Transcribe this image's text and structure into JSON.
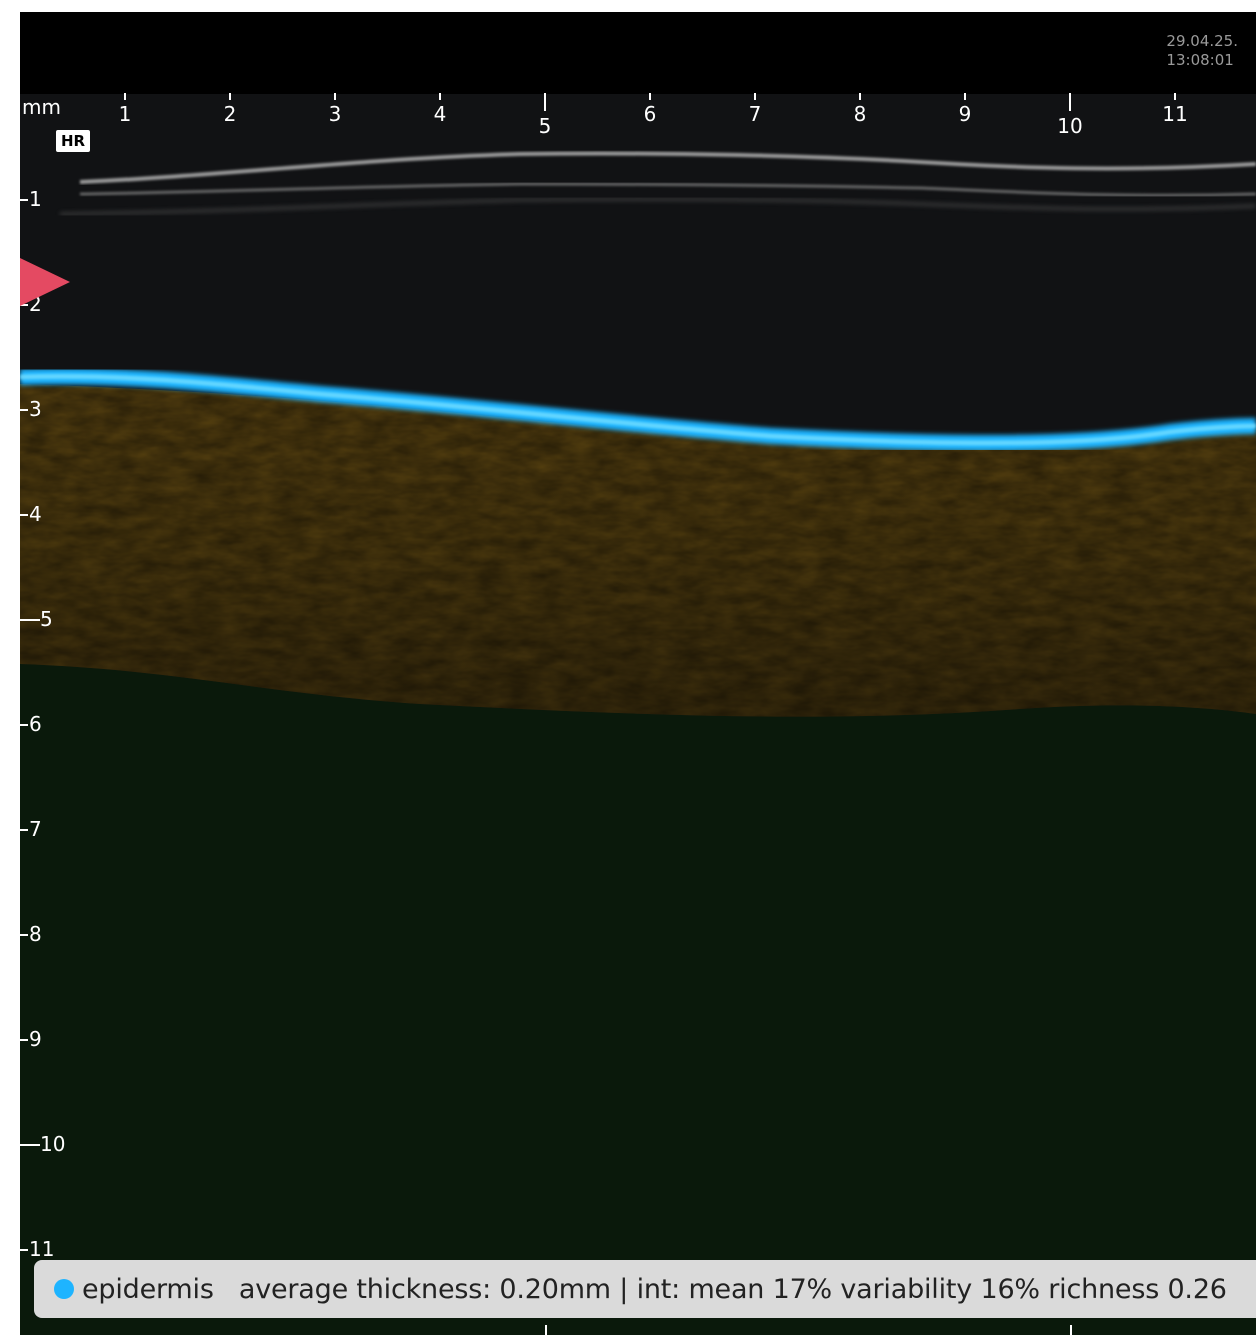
{
  "viewer": {
    "timestamp_date": "29.04.25.",
    "timestamp_time": "13:08:01",
    "unit": "mm",
    "mode_badge": "HR"
  },
  "axes": {
    "x_ticks": [
      "1",
      "2",
      "3",
      "4",
      "5",
      "6",
      "7",
      "8",
      "9",
      "10",
      "11"
    ],
    "y_ticks": [
      "1",
      "2",
      "3",
      "4",
      "5",
      "6",
      "7",
      "8",
      "9",
      "10",
      "11"
    ]
  },
  "colors": {
    "epidermis": "#1eb4ff",
    "dermis": "#5a4510",
    "subcutis": "#0b1a0b",
    "focus_marker": "#e44a62"
  },
  "info_bar": {
    "layer_name": "epidermis",
    "stats": "average thickness: 0.20mm | int: mean 17% variability 16% richness 0.26"
  }
}
